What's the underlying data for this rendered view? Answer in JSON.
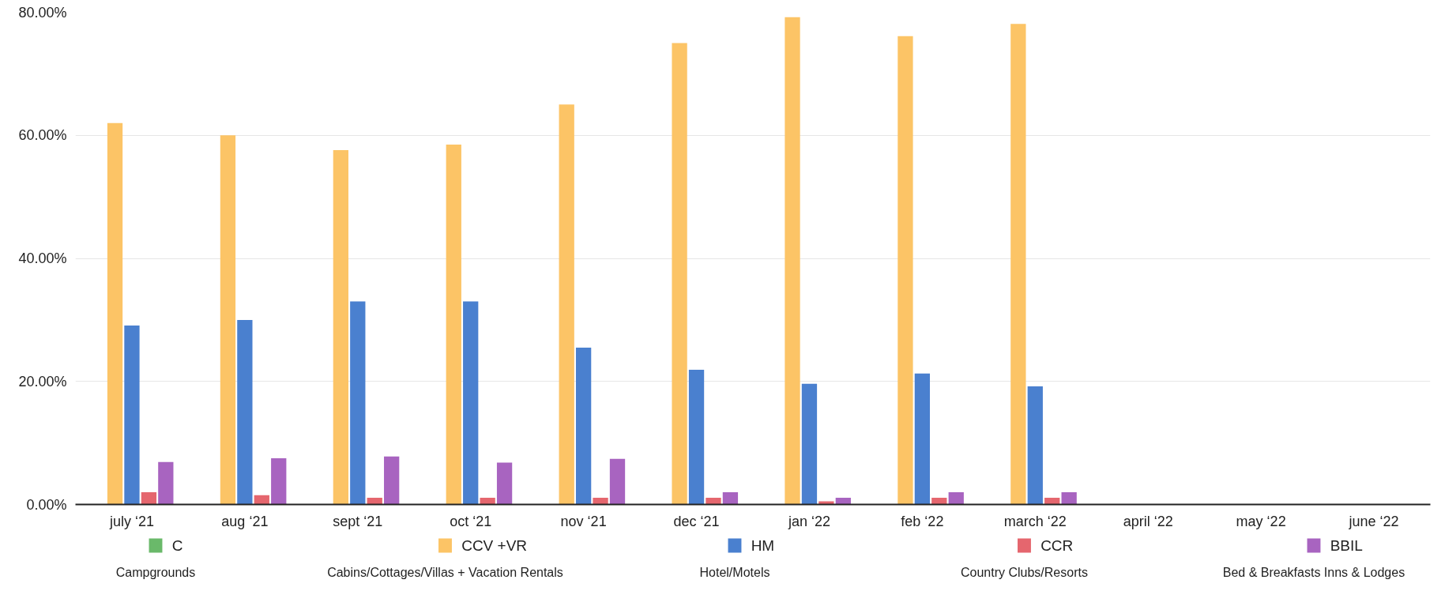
{
  "chart_data": {
    "type": "bar",
    "categories": [
      "july ‘21",
      "aug ‘21",
      "sept ‘21",
      "oct ‘21",
      "nov ‘21",
      "dec ‘21",
      "jan ‘22",
      "feb ‘22",
      "march ‘22",
      "april ‘22",
      "may ‘22",
      "june ‘22"
    ],
    "series": [
      {
        "name": "C",
        "color": "#6ab96a",
        "values": [
          0,
          0,
          0,
          0,
          0,
          0,
          0,
          0,
          0,
          null,
          null,
          null
        ]
      },
      {
        "name": "CCV +VR",
        "color": "#fcc466",
        "values": [
          62,
          60,
          57.6,
          58.5,
          65,
          75,
          79.2,
          76.1,
          78.1,
          null,
          null,
          null
        ]
      },
      {
        "name": "HM",
        "color": "#4a80cf",
        "values": [
          29.1,
          30,
          33,
          33,
          25.5,
          21.9,
          19.6,
          21.3,
          19.2,
          null,
          null,
          null
        ]
      },
      {
        "name": "CCR",
        "color": "#e5666e",
        "values": [
          2,
          1.5,
          1.1,
          1.1,
          1.1,
          1.1,
          0.5,
          1.1,
          1.1,
          null,
          null,
          null
        ]
      },
      {
        "name": "BBIL",
        "color": "#a864c0",
        "values": [
          6.9,
          7.5,
          7.8,
          6.8,
          7.4,
          2,
          1.1,
          2,
          2,
          null,
          null,
          null
        ]
      }
    ],
    "annotations": [
      "Campgrounds",
      "Cabins/Cottages/Villas + Vacation Rentals",
      "Hotel/Motels",
      "Country Clubs/Resorts",
      "Bed & Breakfasts Inns & Lodges"
    ],
    "ylim": [
      0,
      80
    ],
    "yticks": [
      {
        "value": 0,
        "label": "0.00%"
      },
      {
        "value": 20,
        "label": "20.00%"
      },
      {
        "value": 40,
        "label": "40.00%"
      },
      {
        "value": 60,
        "label": "60.00%"
      },
      {
        "value": 80,
        "label": "80.00%"
      }
    ],
    "grid": "y",
    "legend": "bottom"
  }
}
